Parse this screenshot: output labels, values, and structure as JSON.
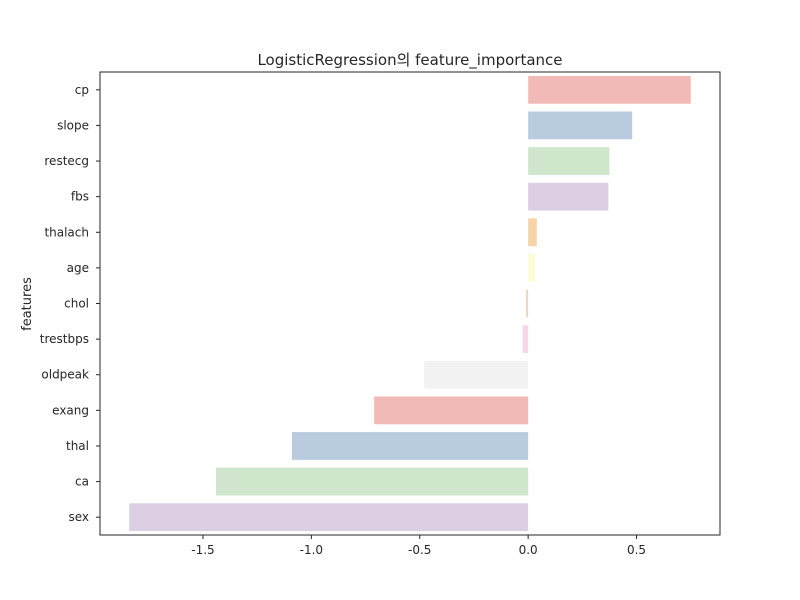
{
  "chart_data": {
    "type": "bar",
    "orientation": "horizontal",
    "title": "LogisticRegression의 feature_importance",
    "xlabel": "",
    "ylabel": "features",
    "categories": [
      "cp",
      "slope",
      "restecg",
      "fbs",
      "thalach",
      "age",
      "chol",
      "trestbps",
      "oldpeak",
      "exang",
      "thal",
      "ca",
      "sex"
    ],
    "values": [
      0.75,
      0.48,
      0.375,
      0.37,
      0.04,
      0.03,
      -0.01,
      -0.025,
      -0.48,
      -0.71,
      -1.09,
      -1.44,
      -1.84
    ],
    "colors": [
      "#f2bab6",
      "#b8cbdf",
      "#d0e6cc",
      "#dccfe3",
      "#f7d3a8",
      "#fdfbd3",
      "#ecd9c5",
      "#f6d6e8",
      "#f2f2f2",
      "#f2bab6",
      "#b8cbdf",
      "#d0e6cc",
      "#dccfe3"
    ],
    "xlim": [
      -1.975,
      0.885
    ],
    "xticks": [
      -1.5,
      -1.0,
      -0.5,
      0.0,
      0.5
    ],
    "xtick_labels": [
      "-1.5",
      "-1.0",
      "-0.5",
      "0.0",
      "0.5"
    ],
    "grid": false,
    "legend": "none"
  }
}
